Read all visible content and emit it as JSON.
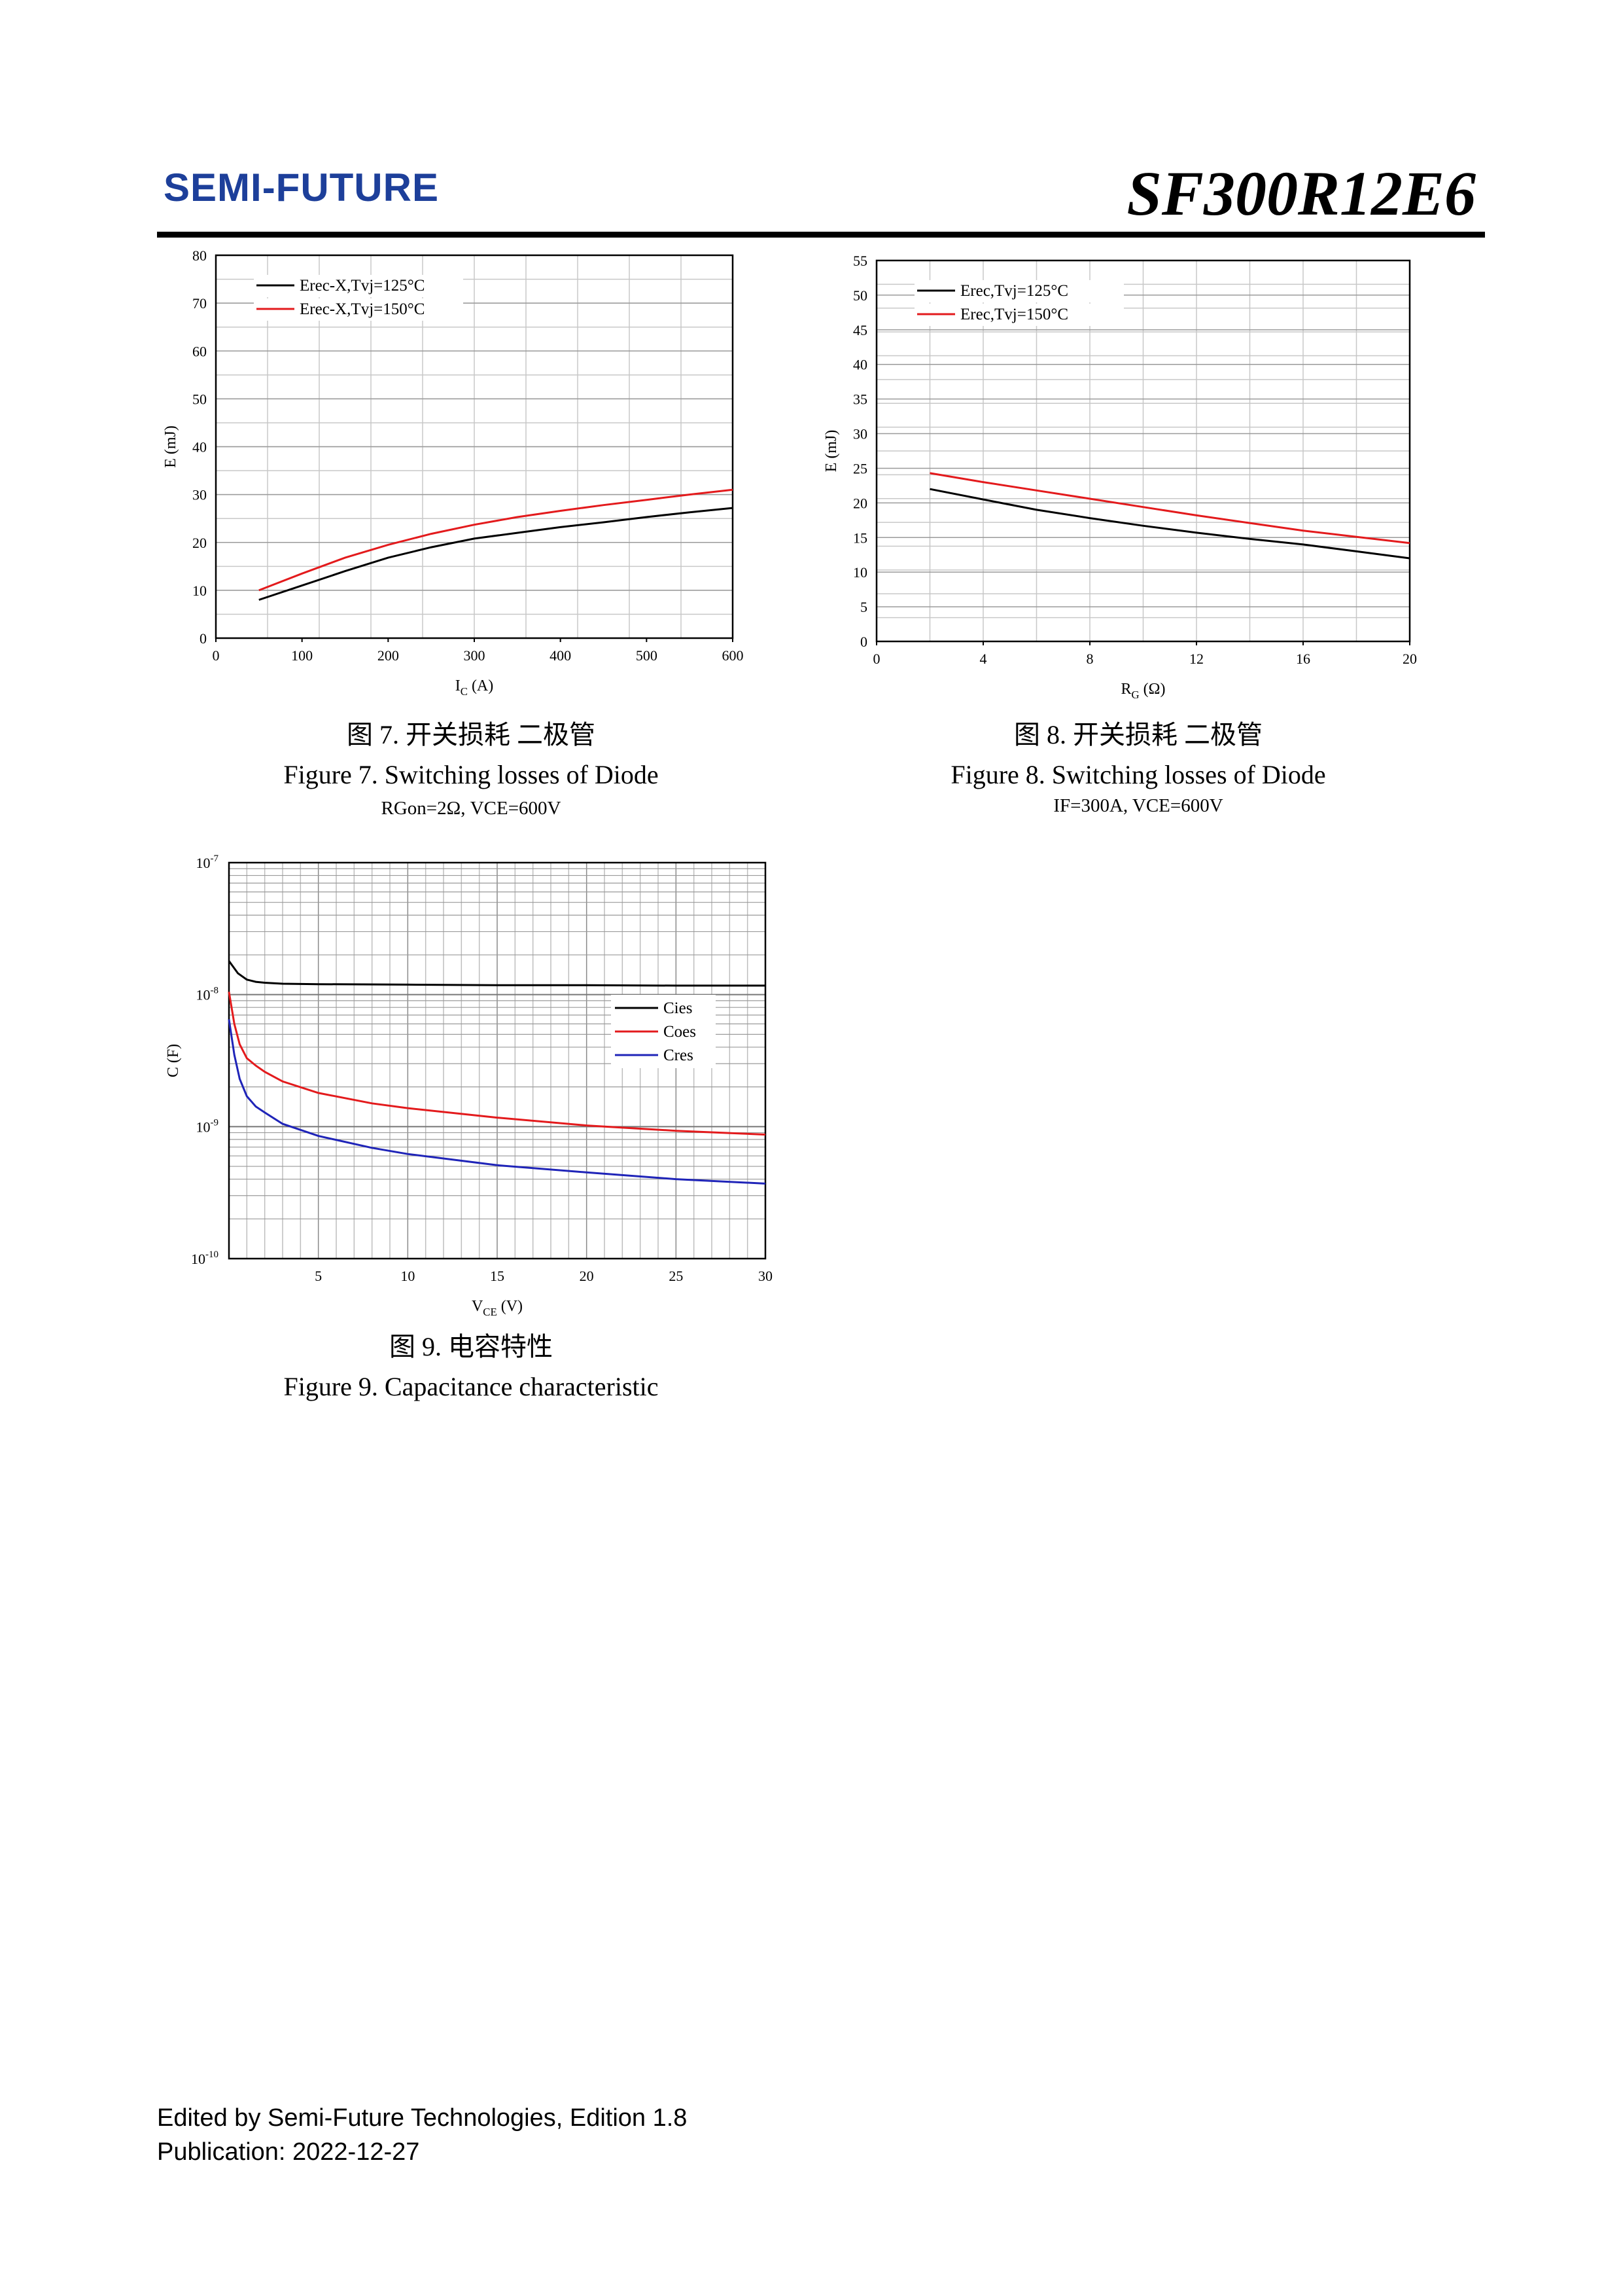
{
  "header": {
    "logo_text": "SEMI-FUTURE",
    "model": "SF300R12E6",
    "brand_color": "#1d3f9a"
  },
  "captions": {
    "fig7": {
      "cn": "图 7.  开关损耗  二极管",
      "en": "Figure 7.  Switching losses of Diode",
      "cond": "RGon=2Ω, VCE=600V"
    },
    "fig8": {
      "cn": "图 8.  开关损耗  二极管",
      "en": "Figure 8.  Switching losses of Diode",
      "cond": "IF=300A, VCE=600V"
    },
    "fig9": {
      "cn": "图 9.  电容特性",
      "en": "Figure 9.  Capacitance characteristic"
    }
  },
  "footer": {
    "line1": "Edited by Semi-Future Technologies, Edition 1.8",
    "line2": "Publication: 2022-12-27"
  },
  "chart_data": [
    {
      "id": "fig7",
      "type": "line",
      "xlabel": "I_C (A)",
      "ylabel": "E (mJ)",
      "xlim": [
        0,
        600
      ],
      "ylim": [
        0,
        80
      ],
      "xticks": [
        0,
        100,
        200,
        300,
        400,
        500,
        600
      ],
      "yticks": [
        0,
        10,
        20,
        30,
        40,
        50,
        60,
        70,
        80
      ],
      "grid": true,
      "legend_position": "top-left",
      "series": [
        {
          "name": "Erec-X,Tvj=125°C",
          "color": "#000000",
          "x": [
            50,
            100,
            150,
            200,
            250,
            300,
            350,
            400,
            450,
            500,
            550,
            600
          ],
          "y": [
            8,
            11,
            14,
            16.8,
            19,
            20.8,
            22,
            23.2,
            24.2,
            25.3,
            26.3,
            27.2
          ]
        },
        {
          "name": "Erec-X,Tvj=150°C",
          "color": "#e31a1c",
          "x": [
            50,
            100,
            150,
            200,
            250,
            300,
            350,
            400,
            450,
            500,
            550,
            600
          ],
          "y": [
            10,
            13.5,
            16.8,
            19.5,
            21.8,
            23.7,
            25.3,
            26.6,
            27.8,
            28.9,
            30,
            31
          ]
        }
      ]
    },
    {
      "id": "fig8",
      "type": "line",
      "xlabel": "R_G (Ω)",
      "ylabel": "E (mJ)",
      "xlim": [
        0,
        20
      ],
      "ylim": [
        0,
        55
      ],
      "xticks": [
        0,
        4,
        8,
        12,
        16,
        20
      ],
      "yticks": [
        0,
        5,
        10,
        15,
        20,
        25,
        30,
        35,
        40,
        45,
        50,
        55
      ],
      "grid": true,
      "legend_position": "top-left",
      "series": [
        {
          "name": "Erec,Tvj=125°C",
          "color": "#000000",
          "x": [
            2,
            4,
            6,
            8,
            10,
            12,
            14,
            16,
            18,
            20
          ],
          "y": [
            22,
            20.5,
            19,
            17.8,
            16.7,
            15.7,
            14.8,
            14,
            13,
            12
          ]
        },
        {
          "name": "Erec,Tvj=150°C",
          "color": "#e31a1c",
          "x": [
            2,
            4,
            6,
            8,
            10,
            12,
            14,
            16,
            18,
            20
          ],
          "y": [
            24.3,
            23,
            21.8,
            20.6,
            19.4,
            18.2,
            17.1,
            16,
            15.1,
            14.2
          ]
        }
      ]
    },
    {
      "id": "fig9",
      "type": "line",
      "xlabel": "V_CE (V)",
      "ylabel": "C (F)",
      "xlim": [
        0,
        30
      ],
      "ylim": [
        1e-10,
        1e-07
      ],
      "yscale": "log",
      "xticks": [
        5,
        10,
        15,
        20,
        25,
        30
      ],
      "ytick_labels": [
        "10^-10",
        "10^-9",
        "10^-8",
        "10^-7"
      ],
      "grid": true,
      "legend_position": "center-right",
      "series": [
        {
          "name": "Cies",
          "color": "#000000",
          "x": [
            0,
            0.5,
            1,
            1.5,
            2,
            3,
            5,
            10,
            15,
            20,
            25,
            30
          ],
          "y": [
            1.8e-08,
            1.45e-08,
            1.3e-08,
            1.25e-08,
            1.23e-08,
            1.21e-08,
            1.2e-08,
            1.19e-08,
            1.18e-08,
            1.18e-08,
            1.17e-08,
            1.17e-08
          ]
        },
        {
          "name": "Coes",
          "color": "#e31a1c",
          "x": [
            0,
            0.3,
            0.6,
            1,
            1.5,
            2,
            3,
            5,
            8,
            10,
            15,
            20,
            25,
            30
          ],
          "y": [
            1.05e-08,
            6e-09,
            4.2e-09,
            3.3e-09,
            2.9e-09,
            2.6e-09,
            2.2e-09,
            1.8e-09,
            1.5e-09,
            1.38e-09,
            1.17e-09,
            1.02e-09,
            9.3e-10,
            8.7e-10
          ]
        },
        {
          "name": "Cres",
          "color": "#1f24b8",
          "x": [
            0,
            0.3,
            0.6,
            1,
            1.5,
            2,
            3,
            5,
            8,
            10,
            15,
            20,
            25,
            30
          ],
          "y": [
            6.5e-09,
            3.5e-09,
            2.3e-09,
            1.7e-09,
            1.42e-09,
            1.28e-09,
            1.05e-09,
            8.5e-10,
            6.9e-10,
            6.2e-10,
            5.1e-10,
            4.5e-10,
            4e-10,
            3.7e-10
          ]
        }
      ]
    }
  ]
}
